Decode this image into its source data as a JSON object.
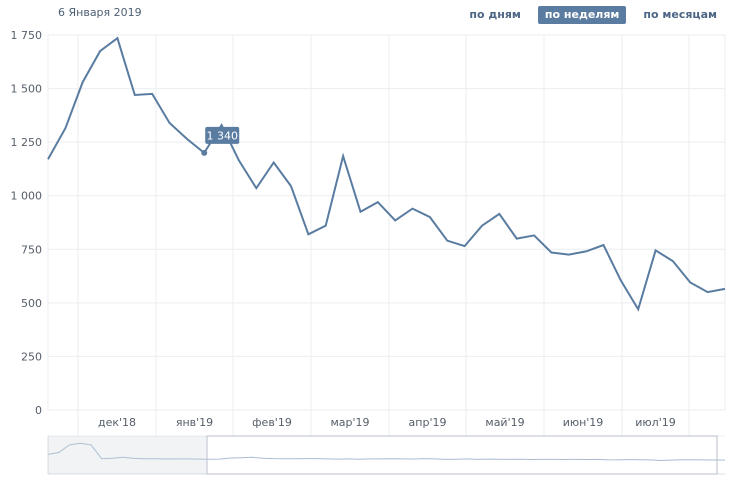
{
  "header": {
    "date_label": "6 Января 2019",
    "tabs": [
      {
        "label": "по дням",
        "active": false
      },
      {
        "label": "по неделям",
        "active": true
      },
      {
        "label": "по месяцам",
        "active": false
      }
    ]
  },
  "tooltip": {
    "value": "1 340",
    "x": 9
  },
  "colors": {
    "line": "#5a7ca1",
    "grid": "#ebedf0",
    "active_tab": "#5a7ca1"
  },
  "chart_data": {
    "type": "line",
    "ylim": [
      0,
      1750
    ],
    "y_ticks": [
      0,
      250,
      500,
      750,
      1000,
      1250,
      1500,
      1750
    ],
    "y_tick_labels": [
      "0",
      "250",
      "500",
      "750",
      "1 000",
      "1 250",
      "1 500",
      "1 750"
    ],
    "x_tick_labels": [
      "дек'18",
      "янв'19",
      "фев'19",
      "мар'19",
      "апр'19",
      "май'19",
      "июн'19",
      "июл'19"
    ],
    "series": [
      {
        "values": [
          1170,
          1315,
          1530,
          1675,
          1735,
          1470,
          1475,
          1340,
          1265,
          1200,
          1330,
          1165,
          1035,
          1155,
          1045,
          820,
          860,
          1185,
          925,
          970,
          885,
          940,
          900,
          790,
          765,
          860,
          915,
          800,
          815,
          735,
          725,
          740,
          770,
          605,
          470,
          745,
          695,
          595,
          550,
          565
        ]
      }
    ],
    "navigator": {
      "values": [
        1250,
        1360,
        1800,
        1900,
        1800,
        1000,
        1030,
        1090,
        1020,
        1000,
        1000,
        985,
        990,
        990,
        980,
        970,
        980,
        1040,
        1060,
        1080,
        1030,
        1010,
        1000,
        995,
        1010,
        1010,
        990,
        980,
        990,
        970,
        990,
        990,
        1000,
        990,
        985,
        1010,
        990,
        960,
        970,
        990,
        960,
        980,
        975,
        960,
        965,
        955,
        960,
        960,
        955,
        960,
        955,
        960,
        940,
        930,
        950,
        945,
        930,
        900,
        920,
        940,
        945,
        935,
        925,
        920
      ]
    }
  }
}
